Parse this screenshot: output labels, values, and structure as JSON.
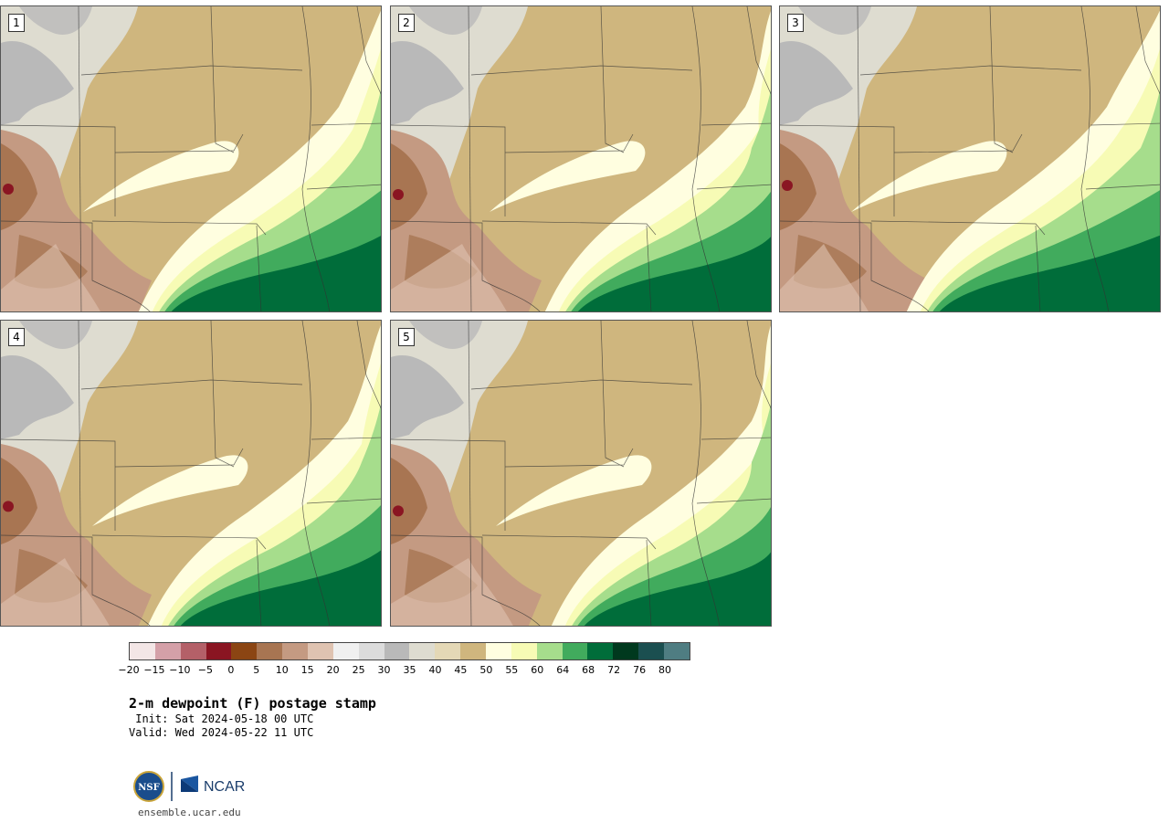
{
  "panels": [
    {
      "label": "1"
    },
    {
      "label": "2"
    },
    {
      "label": "3"
    },
    {
      "label": "4"
    },
    {
      "label": "5"
    }
  ],
  "colorbar": {
    "colors": [
      "#f3e6e6",
      "#d4a0a8",
      "#b46068",
      "#8a1522",
      "#8b4513",
      "#a87552",
      "#c49a82",
      "#dfc3b1",
      "#f0f0f0",
      "#dcdcdc",
      "#b9b9b9",
      "#dedcd0",
      "#e4d8b6",
      "#cfb67e",
      "#fffee0",
      "#f7fbb5",
      "#a6dd8c",
      "#41ab5d",
      "#006d3a",
      "#00391e",
      "#1b4f50",
      "#4f7d82"
    ],
    "tick_labels": [
      "−20",
      "−15",
      "−10",
      "−5",
      "0",
      "5",
      "10",
      "15",
      "20",
      "25",
      "30",
      "35",
      "40",
      "45",
      "50",
      "55",
      "60",
      "64",
      "68",
      "72",
      "76",
      "80"
    ]
  },
  "title": "2-m dewpoint (F) postage stamp",
  "init": " Init: Sat 2024-05-18 00 UTC",
  "valid": "Valid: Wed 2024-05-22 11 UTC",
  "logos": {
    "nsf_text": "NSF",
    "ncar_text": "NCAR"
  },
  "site": "ensemble.ucar.edu"
}
